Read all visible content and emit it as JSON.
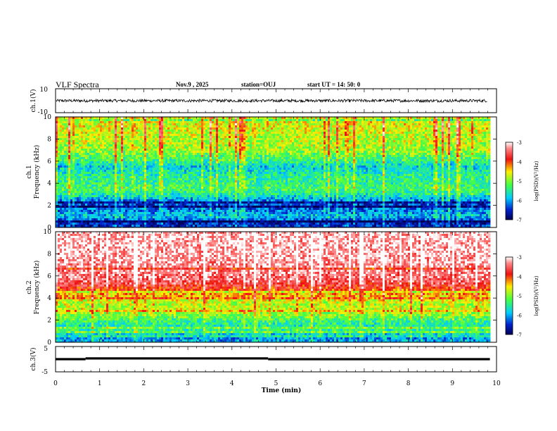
{
  "header": {
    "title": "VLF Spectra",
    "date": "Nov.9 , 2025",
    "station": "station=OUJ",
    "start": "start UT =  14: 50: 0"
  },
  "chart_data": [
    {
      "type": "line",
      "name": "ch1-waveform",
      "ylabel": "ch.1(V)",
      "ylim": [
        -10,
        10
      ],
      "yticks": [
        "10",
        "-10"
      ],
      "xlim": [
        0,
        10
      ],
      "baseline": 0,
      "amplitude": 1.2
    },
    {
      "type": "heatmap",
      "name": "ch1-spectrogram",
      "ylabel": "ch.1\nFrequency (kHz)",
      "ylim": [
        0,
        10
      ],
      "yticks": [
        "0",
        "2",
        "4",
        "6",
        "8",
        "10"
      ],
      "xlim": [
        0,
        9.85
      ],
      "zlabel": "log(PSD)(V²/Hz)",
      "zlim": [
        -7,
        -3
      ],
      "colorbar_ticks": [
        "-3",
        "-4",
        "-5",
        "-6",
        "-7"
      ],
      "profile": [
        [
          0,
          -6.5
        ],
        [
          0.5,
          -6.6
        ],
        [
          1,
          -5.9
        ],
        [
          1.5,
          -6.2
        ],
        [
          2,
          -6.5
        ],
        [
          2.5,
          -6.1
        ],
        [
          3,
          -5.6
        ],
        [
          3.5,
          -5.3
        ],
        [
          4,
          -5.5
        ],
        [
          4.5,
          -5.5
        ],
        [
          5,
          -5.7
        ],
        [
          5.5,
          -5.9
        ],
        [
          6,
          -5.5
        ],
        [
          7,
          -5.0
        ],
        [
          8,
          -4.9
        ],
        [
          9,
          -4.8
        ],
        [
          10,
          -4.8
        ]
      ]
    },
    {
      "type": "heatmap",
      "name": "ch2-spectrogram",
      "ylabel": "ch.2\nFrequency (kHz)",
      "ylim": [
        0,
        10
      ],
      "yticks": [
        "0",
        "2",
        "4",
        "6",
        "8",
        "10"
      ],
      "xlim": [
        0,
        9.85
      ],
      "zlabel": "log(PSD)(V²/Hz)",
      "zlim": [
        -7,
        -3
      ],
      "colorbar_ticks": [
        "-3",
        "-4",
        "-5",
        "-6",
        "-7"
      ],
      "profile": [
        [
          0,
          -6.0
        ],
        [
          0.5,
          -6.1
        ],
        [
          1,
          -5.5
        ],
        [
          1.5,
          -5.6
        ],
        [
          2,
          -5.4
        ],
        [
          2.5,
          -5.0
        ],
        [
          3,
          -4.8
        ],
        [
          3.5,
          -4.9
        ],
        [
          4,
          -4.6
        ],
        [
          4.5,
          -4.3
        ],
        [
          5,
          -3.9
        ],
        [
          5.5,
          -3.6
        ],
        [
          6,
          -3.5
        ],
        [
          7,
          -3.4
        ],
        [
          8,
          -3.3
        ],
        [
          9,
          -3.3
        ],
        [
          10,
          -3.3
        ]
      ]
    },
    {
      "type": "line",
      "name": "ch3-level",
      "ylabel": "ch.3(V)",
      "ylim": [
        -5,
        5
      ],
      "yticks": [
        "5",
        "-5"
      ],
      "xlim": [
        0,
        9.85
      ],
      "segments": [
        {
          "x0": 0.0,
          "x1": 0.68,
          "y": 0.0
        },
        {
          "x0": 0.68,
          "x1": 4.82,
          "y": 0.3
        },
        {
          "x0": 4.82,
          "x1": 9.85,
          "y": 0.0
        }
      ],
      "xticks": [
        "0",
        "1",
        "2",
        "3",
        "4",
        "5",
        "6",
        "7",
        "8",
        "9",
        "10"
      ],
      "xlabel": "Time (min)"
    }
  ]
}
